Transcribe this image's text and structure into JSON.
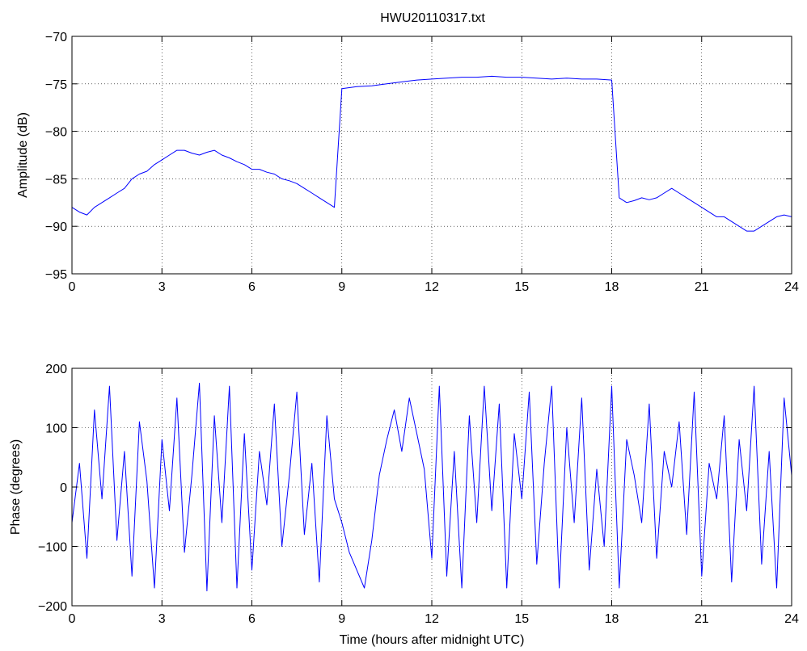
{
  "figure": {
    "title": "HWU20110317.txt",
    "line_color": "#0000ff",
    "axis_color": "#000000",
    "grid_style": "dotted"
  },
  "chart_data": [
    {
      "type": "line",
      "title": "HWU20110317.txt",
      "xlabel": "",
      "ylabel": "Amplitude (dB)",
      "xlim": [
        0,
        24
      ],
      "ylim": [
        -95,
        -70
      ],
      "xticks": [
        0,
        3,
        6,
        9,
        12,
        15,
        18,
        21,
        24
      ],
      "yticks": [
        -95,
        -90,
        -85,
        -80,
        -75,
        -70
      ],
      "xtick_labels": [
        "0",
        "3",
        "6",
        "9",
        "12",
        "15",
        "18",
        "21",
        "24"
      ],
      "ytick_labels": [
        "−95",
        "−90",
        "−85",
        "−80",
        "−75",
        "−70"
      ],
      "grid": true,
      "series": [
        {
          "color": "#0000ff",
          "x": [
            0,
            0.25,
            0.5,
            0.75,
            1,
            1.25,
            1.5,
            1.75,
            2,
            2.25,
            2.5,
            2.75,
            3,
            3.25,
            3.5,
            3.75,
            4,
            4.25,
            4.5,
            4.75,
            5,
            5.25,
            5.5,
            5.75,
            6,
            6.25,
            6.5,
            6.75,
            7,
            7.25,
            7.5,
            7.75,
            8,
            8.25,
            8.5,
            8.75,
            9,
            9.5,
            10,
            10.5,
            11,
            11.5,
            12,
            12.5,
            13,
            13.5,
            14,
            14.5,
            15,
            15.5,
            16,
            16.5,
            17,
            17.5,
            18,
            18.25,
            18.5,
            18.75,
            19,
            19.25,
            19.5,
            19.75,
            20,
            20.25,
            20.5,
            20.75,
            21,
            21.25,
            21.5,
            21.75,
            22,
            22.25,
            22.5,
            22.75,
            23,
            23.25,
            23.5,
            23.75,
            24
          ],
          "y": [
            -88,
            -88.5,
            -88.8,
            -88,
            -87.5,
            -87,
            -86.5,
            -86,
            -85,
            -84.5,
            -84.2,
            -83.5,
            -83,
            -82.5,
            -82,
            -82,
            -82.3,
            -82.5,
            -82.2,
            -82,
            -82.5,
            -82.8,
            -83.2,
            -83.5,
            -84,
            -84,
            -84.3,
            -84.5,
            -85,
            -85.2,
            -85.5,
            -86,
            -86.5,
            -87,
            -87.5,
            -88,
            -75.5,
            -75.3,
            -75.2,
            -75,
            -74.8,
            -74.6,
            -74.5,
            -74.4,
            -74.3,
            -74.3,
            -74.2,
            -74.3,
            -74.3,
            -74.4,
            -74.5,
            -74.4,
            -74.5,
            -74.5,
            -74.6,
            -87,
            -87.5,
            -87.3,
            -87,
            -87.2,
            -87,
            -86.5,
            -86,
            -86.5,
            -87,
            -87.5,
            -88,
            -88.5,
            -89,
            -89,
            -89.5,
            -90,
            -90.5,
            -90.5,
            -90,
            -89.5,
            -89,
            -88.8,
            -89
          ]
        }
      ]
    },
    {
      "type": "line",
      "title": "",
      "xlabel": "Time (hours after midnight UTC)",
      "ylabel": "Phase (degrees)",
      "xlim": [
        0,
        24
      ],
      "ylim": [
        -200,
        200
      ],
      "xticks": [
        0,
        3,
        6,
        9,
        12,
        15,
        18,
        21,
        24
      ],
      "yticks": [
        -200,
        -100,
        0,
        100,
        200
      ],
      "xtick_labels": [
        "0",
        "3",
        "6",
        "9",
        "12",
        "15",
        "18",
        "21",
        "24"
      ],
      "ytick_labels": [
        "−200",
        "−100",
        "0",
        "100",
        "200"
      ],
      "grid": true,
      "series": [
        {
          "color": "#0000ff",
          "x": [
            0,
            0.25,
            0.5,
            0.75,
            1,
            1.25,
            1.5,
            1.75,
            2,
            2.25,
            2.5,
            2.75,
            3,
            3.25,
            3.5,
            3.75,
            4,
            4.25,
            4.5,
            4.75,
            5,
            5.25,
            5.5,
            5.75,
            6,
            6.25,
            6.5,
            6.75,
            7,
            7.25,
            7.5,
            7.75,
            8,
            8.25,
            8.5,
            8.75,
            9,
            9.25,
            9.5,
            9.75,
            10,
            10.25,
            10.5,
            10.75,
            11,
            11.25,
            11.5,
            11.75,
            12,
            12.25,
            12.5,
            12.75,
            13,
            13.25,
            13.5,
            13.75,
            14,
            14.25,
            14.5,
            14.75,
            15,
            15.25,
            15.5,
            15.75,
            16,
            16.25,
            16.5,
            16.75,
            17,
            17.25,
            17.5,
            17.75,
            18,
            18.25,
            18.5,
            18.75,
            19,
            19.25,
            19.5,
            19.75,
            20,
            20.25,
            20.5,
            20.75,
            21,
            21.25,
            21.5,
            21.75,
            22,
            22.25,
            22.5,
            22.75,
            23,
            23.25,
            23.5,
            23.75,
            24
          ],
          "y": [
            -60,
            40,
            -120,
            130,
            -20,
            170,
            -90,
            60,
            -150,
            110,
            10,
            -170,
            80,
            -40,
            150,
            -110,
            20,
            175,
            -175,
            120,
            -60,
            170,
            -170,
            90,
            -140,
            60,
            -30,
            140,
            -100,
            20,
            160,
            -80,
            40,
            -160,
            120,
            -20,
            -60,
            -110,
            -140,
            -170,
            -90,
            20,
            80,
            130,
            60,
            150,
            90,
            30,
            -120,
            170,
            -150,
            60,
            -170,
            120,
            -60,
            170,
            -40,
            140,
            -170,
            90,
            -20,
            160,
            -130,
            40,
            170,
            -170,
            100,
            -60,
            150,
            -140,
            30,
            -100,
            170,
            -170,
            80,
            20,
            -60,
            140,
            -120,
            60,
            0,
            110,
            -80,
            160,
            -150,
            40,
            -20,
            120,
            -160,
            80,
            -40,
            170,
            -130,
            60,
            -170,
            150,
            20
          ]
        }
      ]
    }
  ]
}
